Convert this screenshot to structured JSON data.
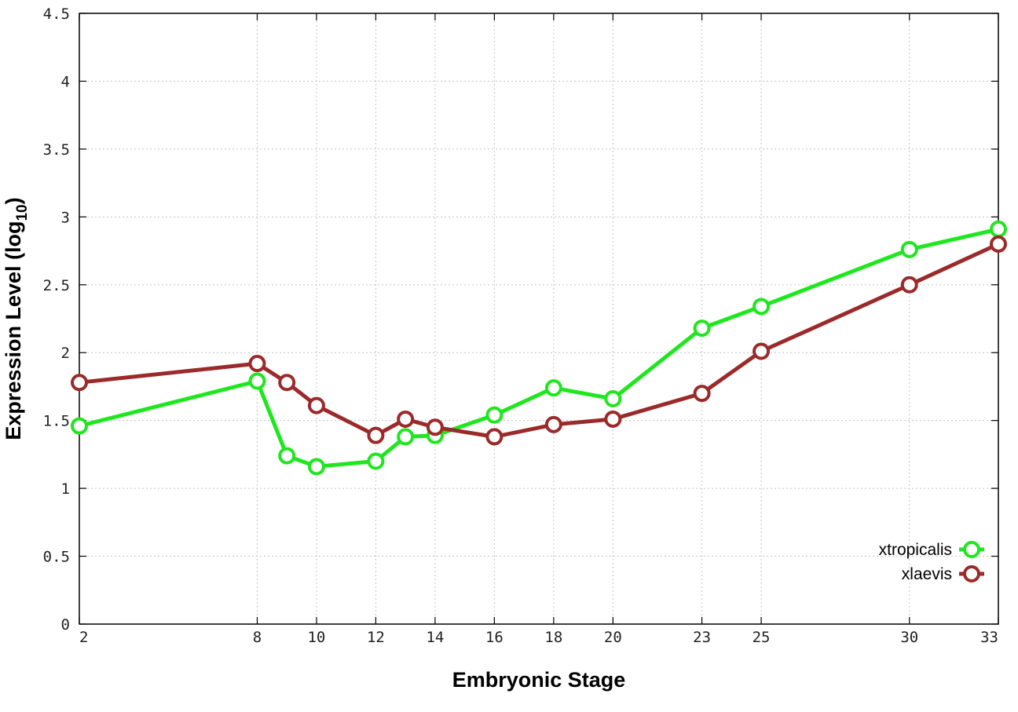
{
  "chart_data": {
    "type": "line",
    "xlabel": "Embryonic Stage",
    "ylabel": "Expression Level (log",
    "ylabel_sub": "10",
    "ylabel_close": ")",
    "xlim": [
      2,
      33
    ],
    "ylim": [
      0,
      4.5
    ],
    "x_ticks": [
      2,
      8,
      10,
      12,
      14,
      16,
      18,
      20,
      23,
      25,
      30,
      33
    ],
    "y_ticks": [
      0,
      0.5,
      1,
      1.5,
      2,
      2.5,
      3,
      3.5,
      4,
      4.5
    ],
    "y_tick_labels": [
      "0",
      "0.5",
      "1",
      "1.5",
      "2",
      "2.5",
      "3",
      "3.5",
      "4",
      "4.5"
    ],
    "grid": true,
    "legend_position": "bottom-right",
    "x": [
      2,
      8,
      9,
      10,
      12,
      13,
      14,
      16,
      18,
      20,
      23,
      25,
      30,
      33
    ],
    "series": [
      {
        "name": "xtropicalis",
        "color": "#1fe71f",
        "values": [
          1.46,
          1.79,
          1.24,
          1.16,
          1.2,
          1.38,
          1.39,
          1.54,
          1.74,
          1.66,
          2.18,
          2.34,
          2.76,
          2.91
        ]
      },
      {
        "name": "xlaevis",
        "color": "#9b2a2a",
        "values": [
          1.78,
          1.92,
          1.78,
          1.61,
          1.39,
          1.51,
          1.45,
          1.38,
          1.47,
          1.51,
          1.7,
          2.01,
          2.5,
          2.8
        ]
      }
    ]
  }
}
